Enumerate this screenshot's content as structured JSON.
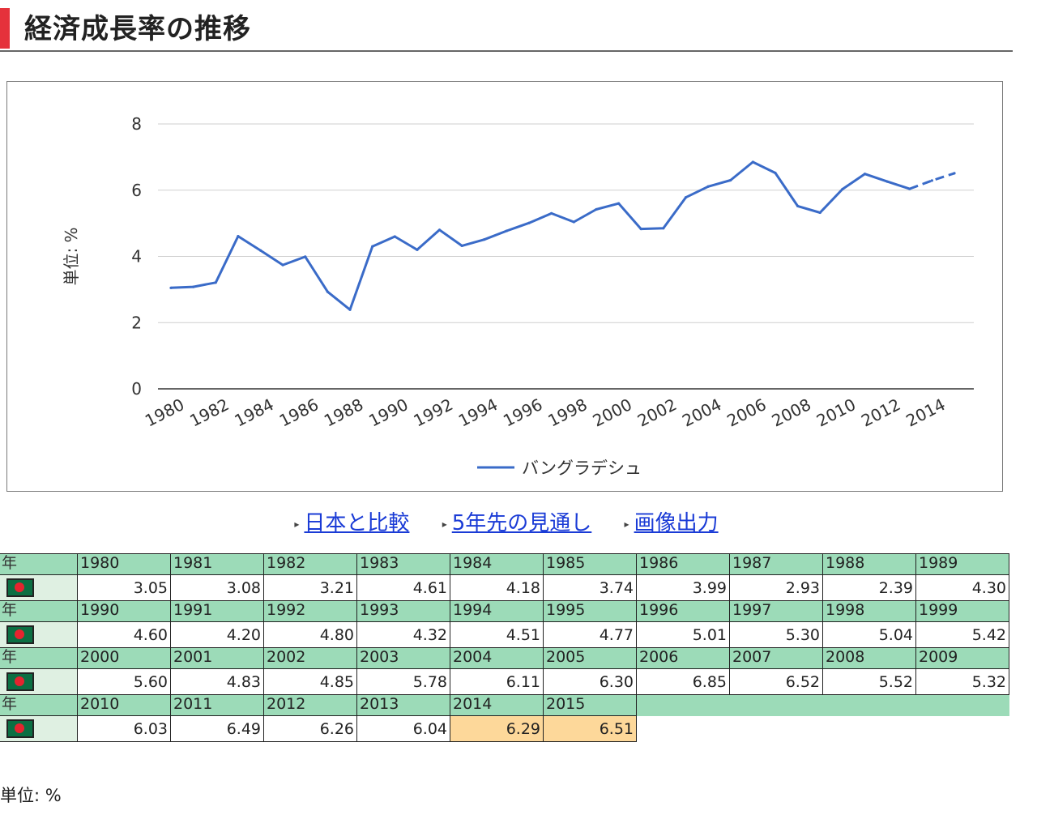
{
  "page": {
    "title": "経済成長率の推移",
    "colors": {
      "accent": "#e5323b",
      "line": "#3a6bc8",
      "year_row": "#9cdbb8",
      "estimate": "#fdd89a",
      "flag_green": "#0b6f43",
      "flag_red": "#e5242f"
    }
  },
  "chart_data": {
    "type": "line",
    "ylabel": "単位: %",
    "ylim": [
      0,
      8
    ],
    "yticks": [
      0,
      2,
      4,
      6,
      8
    ],
    "xticks": [
      "1980",
      "1982",
      "1984",
      "1986",
      "1988",
      "1990",
      "1992",
      "1994",
      "1996",
      "1998",
      "2000",
      "2002",
      "2004",
      "2006",
      "2008",
      "2010",
      "2012",
      "2014"
    ],
    "grid": true,
    "legend_position": "bottom",
    "x": [
      1980,
      1981,
      1982,
      1983,
      1984,
      1985,
      1986,
      1987,
      1988,
      1989,
      1990,
      1991,
      1992,
      1993,
      1994,
      1995,
      1996,
      1997,
      1998,
      1999,
      2000,
      2001,
      2002,
      2003,
      2004,
      2005,
      2006,
      2007,
      2008,
      2009,
      2010,
      2011,
      2012,
      2013,
      2014,
      2015
    ],
    "series": [
      {
        "name": "バングラデシュ",
        "color": "#3a6bc8",
        "values": [
          3.05,
          3.08,
          3.21,
          4.61,
          4.18,
          3.74,
          3.99,
          2.93,
          2.39,
          4.3,
          4.6,
          4.2,
          4.8,
          4.32,
          4.51,
          4.77,
          5.01,
          5.3,
          5.04,
          5.42,
          5.6,
          4.83,
          4.85,
          5.78,
          6.11,
          6.3,
          6.85,
          6.52,
          5.52,
          5.32,
          6.03,
          6.49,
          6.26,
          6.04,
          6.29,
          6.51
        ],
        "estimate_from": 2013
      }
    ]
  },
  "links": [
    {
      "label": "日本と比較"
    },
    {
      "label": "5年先の見通し"
    },
    {
      "label": "画像出力"
    }
  ],
  "table": {
    "year_header": "年",
    "flag_icon": "bangladesh-flag-icon",
    "rows": [
      {
        "years": [
          "1980",
          "1981",
          "1982",
          "1983",
          "1984",
          "1985",
          "1986",
          "1987",
          "1988",
          "1989"
        ],
        "values": [
          "3.05",
          "3.08",
          "3.21",
          "4.61",
          "4.18",
          "3.74",
          "3.99",
          "2.93",
          "2.39",
          "4.30"
        ],
        "estimates": []
      },
      {
        "years": [
          "1990",
          "1991",
          "1992",
          "1993",
          "1994",
          "1995",
          "1996",
          "1997",
          "1998",
          "1999"
        ],
        "values": [
          "4.60",
          "4.20",
          "4.80",
          "4.32",
          "4.51",
          "4.77",
          "5.01",
          "5.30",
          "5.04",
          "5.42"
        ],
        "estimates": []
      },
      {
        "years": [
          "2000",
          "2001",
          "2002",
          "2003",
          "2004",
          "2005",
          "2006",
          "2007",
          "2008",
          "2009"
        ],
        "values": [
          "5.60",
          "4.83",
          "4.85",
          "5.78",
          "6.11",
          "6.30",
          "6.85",
          "6.52",
          "5.52",
          "5.32"
        ],
        "estimates": []
      },
      {
        "years": [
          "2010",
          "2011",
          "2012",
          "2013",
          "2014",
          "2015"
        ],
        "values": [
          "6.03",
          "6.49",
          "6.26",
          "6.04",
          "6.29",
          "6.51"
        ],
        "estimates": [
          4,
          5
        ]
      }
    ]
  },
  "unit_note": "単位: %"
}
